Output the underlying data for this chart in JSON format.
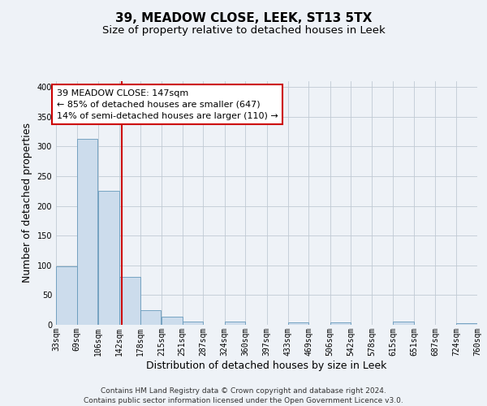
{
  "title": "39, MEADOW CLOSE, LEEK, ST13 5TX",
  "subtitle": "Size of property relative to detached houses in Leek",
  "xlabel": "Distribution of detached houses by size in Leek",
  "ylabel": "Number of detached properties",
  "bins": [
    33,
    69,
    106,
    142,
    178,
    215,
    251,
    287,
    324,
    360,
    397,
    433,
    469,
    506,
    542,
    578,
    615,
    651,
    687,
    724,
    760
  ],
  "counts": [
    99,
    313,
    225,
    81,
    25,
    14,
    5,
    0,
    5,
    0,
    0,
    4,
    0,
    4,
    0,
    0,
    5,
    0,
    0,
    3
  ],
  "bar_color": "#ccdcec",
  "bar_edge_color": "#6699bb",
  "property_value": 147,
  "vline_color": "#cc0000",
  "annotation_line1": "39 MEADOW CLOSE: 147sqm",
  "annotation_line2": "← 85% of detached houses are smaller (647)",
  "annotation_line3": "14% of semi-detached houses are larger (110) →",
  "annotation_box_color": "#ffffff",
  "annotation_box_edge": "#cc0000",
  "ylim": [
    0,
    410
  ],
  "yticks": [
    0,
    50,
    100,
    150,
    200,
    250,
    300,
    350,
    400
  ],
  "footer_text": "Contains HM Land Registry data © Crown copyright and database right 2024.\nContains public sector information licensed under the Open Government Licence v3.0.",
  "background_color": "#eef2f7",
  "plot_background": "#eef2f7",
  "grid_color": "#c0cad4",
  "title_fontsize": 11,
  "subtitle_fontsize": 9.5,
  "axis_label_fontsize": 9,
  "tick_fontsize": 7,
  "annotation_fontsize": 8,
  "footer_fontsize": 6.5
}
